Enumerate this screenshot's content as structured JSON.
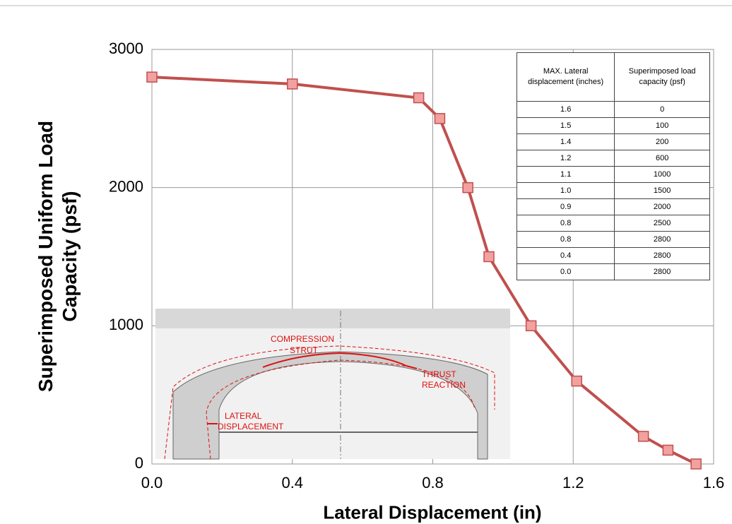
{
  "chart_data": {
    "type": "line",
    "x_label": "Lateral Displacement (in)",
    "y_label": "Superimposed Uniform Load Capacity (psf)",
    "xlim": [
      0,
      1.6
    ],
    "ylim": [
      0,
      3000
    ],
    "xticks": [
      {
        "value": 0,
        "label": "0.0"
      },
      0.4,
      0.8,
      1.2,
      1.6
    ],
    "yticks": [
      0,
      1000,
      2000,
      3000
    ],
    "grid": true,
    "series": [
      {
        "color": "#c0504d",
        "marker_fill": "#f2a0a0",
        "x": [
          0.0,
          0.4,
          0.76,
          0.82,
          0.9,
          0.96,
          1.08,
          1.21,
          1.4,
          1.47,
          1.55
        ],
        "values": [
          2800,
          2750,
          2650,
          2500,
          2000,
          1500,
          1000,
          600,
          200,
          100,
          0
        ]
      }
    ],
    "table": {
      "header": [
        "MAX. Lateral displacement (inches)",
        "Superimposed load capacity (psf)"
      ],
      "rows": [
        [
          "1.6",
          "0"
        ],
        [
          "1.5",
          "100"
        ],
        [
          "1.4",
          "200"
        ],
        [
          "1.2",
          "600"
        ],
        [
          "1.1",
          "1000"
        ],
        [
          "1.0",
          "1500"
        ],
        [
          "0.9",
          "2000"
        ],
        [
          "0.8",
          "2500"
        ],
        [
          "0.8",
          "2800"
        ],
        [
          "0.4",
          "2800"
        ],
        [
          "0.0",
          "2800"
        ]
      ]
    },
    "inset_labels": [
      "COMPRESSION",
      "STRUT",
      "THRUST",
      "REACTION",
      "LATERAL",
      "DISPLACEMENT"
    ]
  }
}
